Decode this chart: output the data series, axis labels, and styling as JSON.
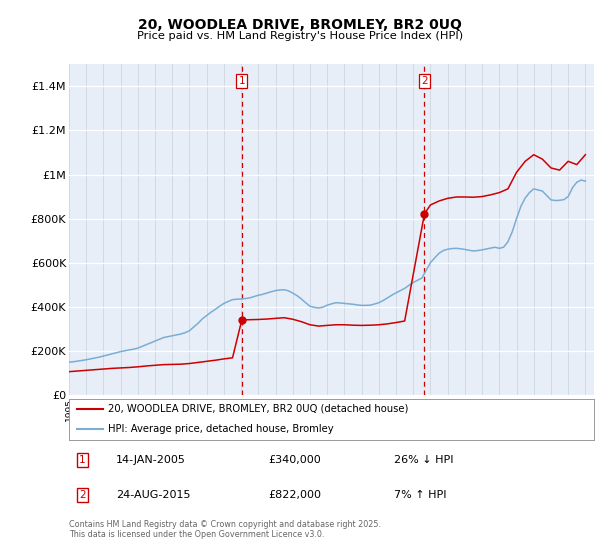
{
  "title": "20, WOODLEA DRIVE, BROMLEY, BR2 0UQ",
  "subtitle": "Price paid vs. HM Land Registry's House Price Index (HPI)",
  "line1_label": "20, WOODLEA DRIVE, BROMLEY, BR2 0UQ (detached house)",
  "line2_label": "HPI: Average price, detached house, Bromley",
  "sale1_date_label": "14-JAN-2005",
  "sale1_price_label": "£340,000",
  "sale1_hpi_label": "26% ↓ HPI",
  "sale2_date_label": "24-AUG-2015",
  "sale2_price_label": "£822,000",
  "sale2_hpi_label": "7% ↑ HPI",
  "footer": "Contains HM Land Registry data © Crown copyright and database right 2025.\nThis data is licensed under the Open Government Licence v3.0.",
  "line_color_red": "#cc0000",
  "line_color_blue": "#7aadd4",
  "vline_color": "#cc0000",
  "plot_bg": "#e8eef8",
  "ylim": [
    0,
    1500000
  ],
  "yticks": [
    0,
    200000,
    400000,
    600000,
    800000,
    1000000,
    1200000,
    1400000
  ],
  "ytick_labels": [
    "£0",
    "£200K",
    "£400K",
    "£600K",
    "£800K",
    "£1M",
    "£1.2M",
    "£1.4M"
  ],
  "sale1_x": 2005.04,
  "sale1_y": 340000,
  "sale2_x": 2015.65,
  "sale2_y": 822000,
  "xmin": 1995,
  "xmax": 2025.5,
  "hpi_x": [
    1995.0,
    1995.25,
    1995.5,
    1995.75,
    1996.0,
    1996.25,
    1996.5,
    1996.75,
    1997.0,
    1997.25,
    1997.5,
    1997.75,
    1998.0,
    1998.25,
    1998.5,
    1998.75,
    1999.0,
    1999.25,
    1999.5,
    1999.75,
    2000.0,
    2000.25,
    2000.5,
    2000.75,
    2001.0,
    2001.25,
    2001.5,
    2001.75,
    2002.0,
    2002.25,
    2002.5,
    2002.75,
    2003.0,
    2003.25,
    2003.5,
    2003.75,
    2004.0,
    2004.25,
    2004.5,
    2004.75,
    2005.0,
    2005.25,
    2005.5,
    2005.75,
    2006.0,
    2006.25,
    2006.5,
    2006.75,
    2007.0,
    2007.25,
    2007.5,
    2007.75,
    2008.0,
    2008.25,
    2008.5,
    2008.75,
    2009.0,
    2009.25,
    2009.5,
    2009.75,
    2010.0,
    2010.25,
    2010.5,
    2010.75,
    2011.0,
    2011.25,
    2011.5,
    2011.75,
    2012.0,
    2012.25,
    2012.5,
    2012.75,
    2013.0,
    2013.25,
    2013.5,
    2013.75,
    2014.0,
    2014.25,
    2014.5,
    2014.75,
    2015.0,
    2015.25,
    2015.5,
    2015.75,
    2016.0,
    2016.25,
    2016.5,
    2016.75,
    2017.0,
    2017.25,
    2017.5,
    2017.75,
    2018.0,
    2018.25,
    2018.5,
    2018.75,
    2019.0,
    2019.25,
    2019.5,
    2019.75,
    2020.0,
    2020.25,
    2020.5,
    2020.75,
    2021.0,
    2021.25,
    2021.5,
    2021.75,
    2022.0,
    2022.25,
    2022.5,
    2022.75,
    2023.0,
    2023.25,
    2023.5,
    2023.75,
    2024.0,
    2024.25,
    2024.5,
    2024.75,
    2025.0
  ],
  "hpi_y": [
    148000,
    150000,
    153000,
    156000,
    159000,
    163000,
    167000,
    171000,
    176000,
    181000,
    186000,
    191000,
    196000,
    200000,
    204000,
    207000,
    212000,
    220000,
    228000,
    236000,
    244000,
    252000,
    260000,
    264000,
    268000,
    272000,
    276000,
    282000,
    291000,
    308000,
    325000,
    345000,
    360000,
    375000,
    388000,
    402000,
    415000,
    424000,
    432000,
    434000,
    435000,
    437000,
    440000,
    446000,
    452000,
    456000,
    462000,
    468000,
    473000,
    476000,
    477000,
    472000,
    462000,
    450000,
    435000,
    418000,
    402000,
    397000,
    394000,
    398000,
    407000,
    413000,
    418000,
    417000,
    415000,
    413000,
    411000,
    408000,
    406000,
    406000,
    407000,
    412000,
    418000,
    428000,
    440000,
    452000,
    463000,
    473000,
    483000,
    497000,
    510000,
    520000,
    530000,
    565000,
    600000,
    622000,
    643000,
    655000,
    661000,
    664000,
    665000,
    663000,
    660000,
    656000,
    653000,
    655000,
    658000,
    662000,
    666000,
    670000,
    665000,
    670000,
    695000,
    740000,
    800000,
    855000,
    893000,
    918000,
    935000,
    930000,
    925000,
    905000,
    885000,
    882000,
    883000,
    886000,
    900000,
    940000,
    965000,
    975000,
    970000
  ],
  "price_x": [
    1995.0,
    1995.5,
    1996.0,
    1996.5,
    1997.0,
    1997.5,
    1998.0,
    1998.5,
    1999.0,
    1999.5,
    2000.0,
    2000.5,
    2001.0,
    2001.5,
    2002.0,
    2002.5,
    2003.0,
    2003.5,
    2004.0,
    2004.5,
    2005.04,
    2006.0,
    2006.5,
    2007.0,
    2007.5,
    2008.0,
    2008.5,
    2009.0,
    2009.5,
    2010.0,
    2010.5,
    2011.0,
    2011.5,
    2012.0,
    2012.5,
    2013.0,
    2013.5,
    2014.0,
    2014.5,
    2015.65,
    2016.0,
    2016.5,
    2017.0,
    2017.5,
    2018.0,
    2018.5,
    2019.0,
    2019.5,
    2020.0,
    2020.5,
    2021.0,
    2021.5,
    2022.0,
    2022.5,
    2023.0,
    2023.5,
    2024.0,
    2024.5,
    2025.0
  ],
  "price_y": [
    105000,
    108000,
    111000,
    114000,
    117000,
    120000,
    122000,
    124000,
    127000,
    131000,
    134000,
    137000,
    138000,
    139000,
    142000,
    147000,
    152000,
    157000,
    163000,
    168000,
    340000,
    342000,
    344000,
    347000,
    350000,
    343000,
    332000,
    318000,
    312000,
    315000,
    318000,
    318000,
    316000,
    315000,
    316000,
    318000,
    322000,
    328000,
    335000,
    822000,
    862000,
    880000,
    892000,
    898000,
    898000,
    897000,
    900000,
    908000,
    918000,
    935000,
    1010000,
    1060000,
    1090000,
    1070000,
    1030000,
    1020000,
    1060000,
    1045000,
    1090000
  ]
}
